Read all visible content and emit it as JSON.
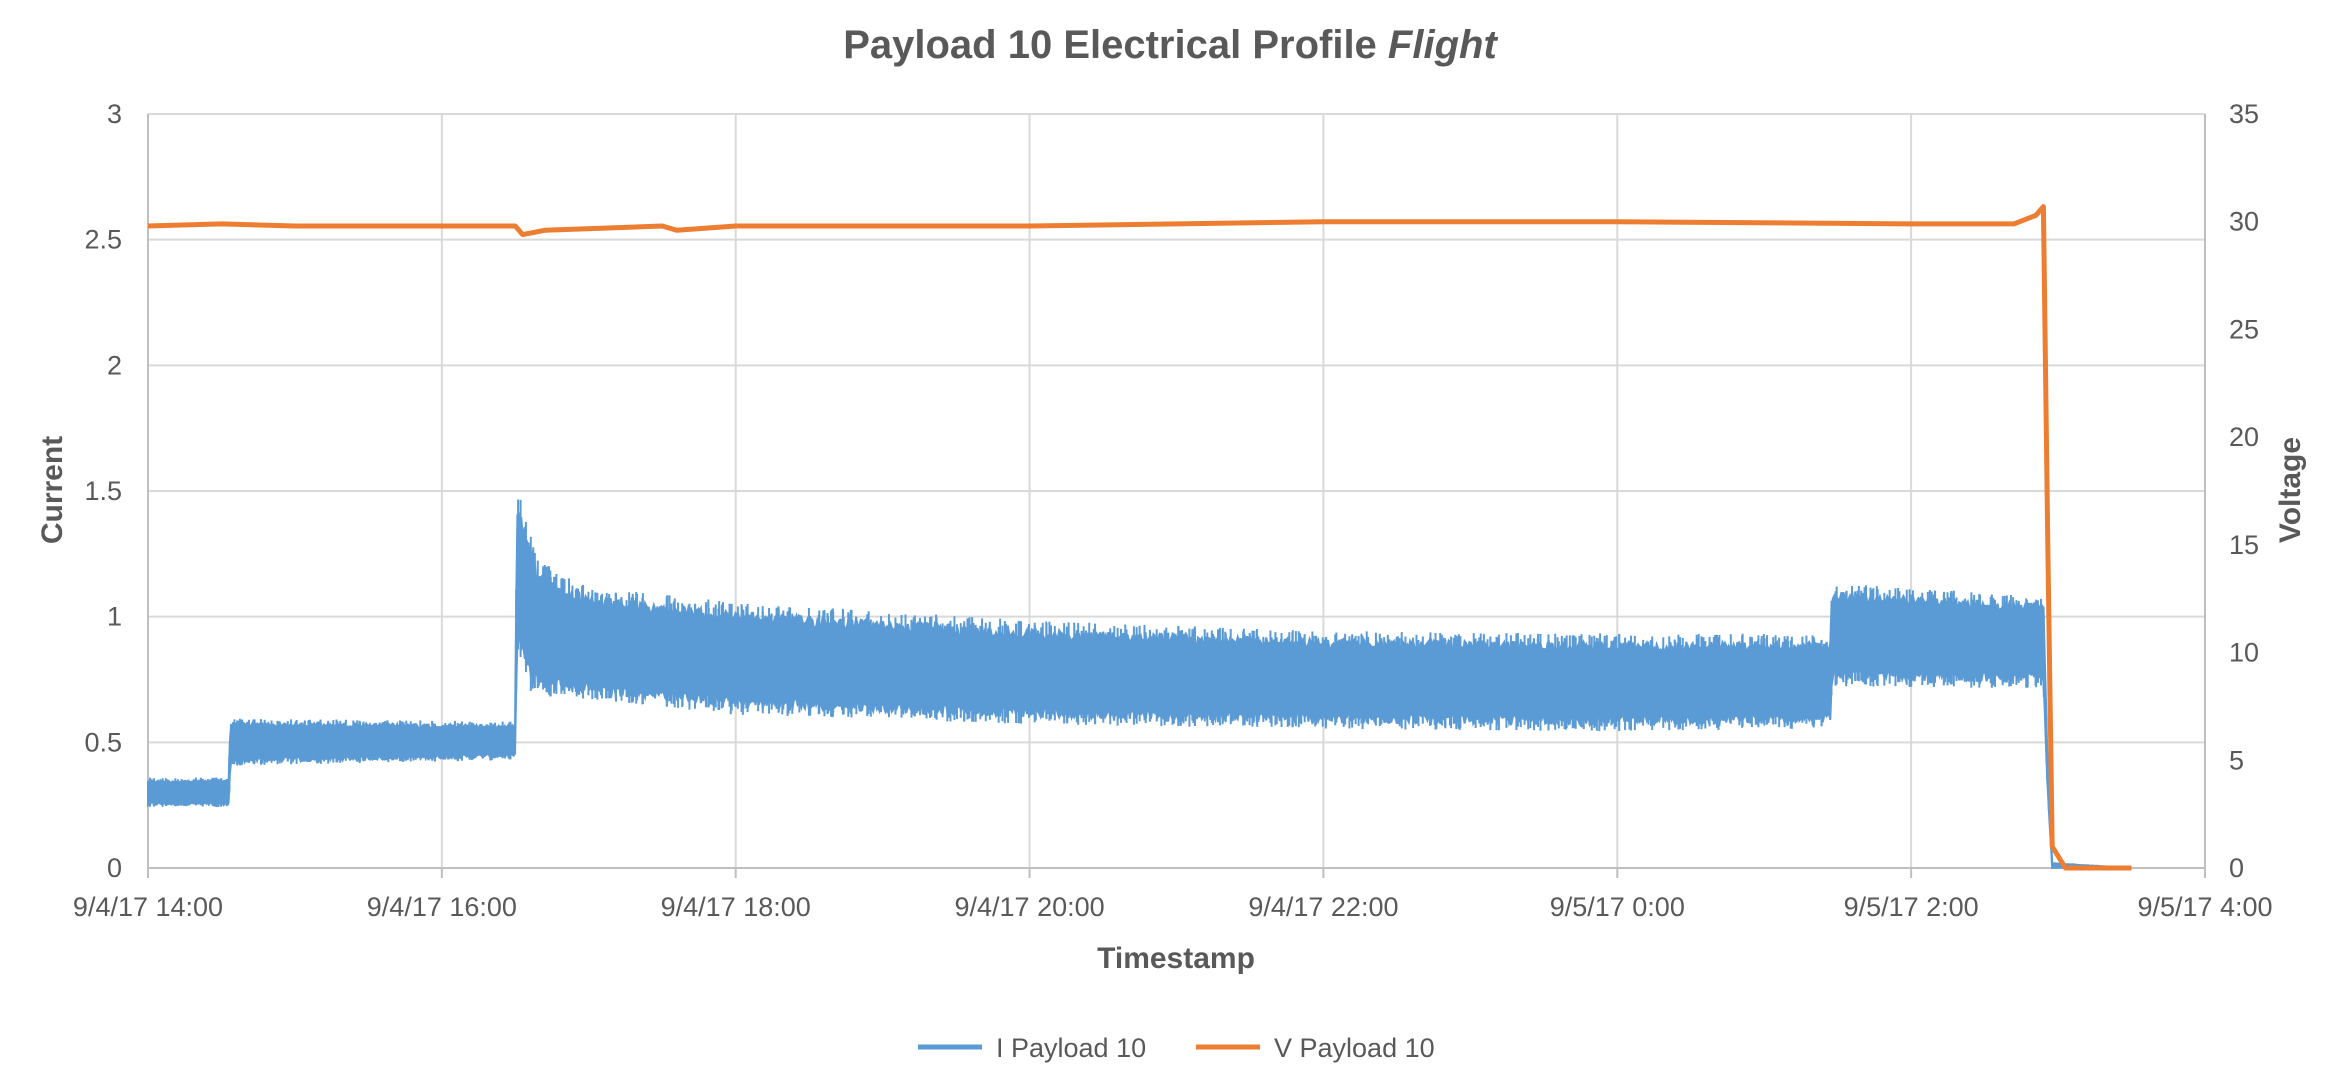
{
  "chart_data": {
    "type": "line",
    "title": "Payload 10 Electrical Profile",
    "title_italic": "Flight",
    "xlabel": "Timestamp",
    "ylabel": "Current",
    "y2label": "Voltage",
    "x_ticks": [
      "9/4/17 14:00",
      "9/4/17 16:00",
      "9/4/17 18:00",
      "9/4/17 20:00",
      "9/4/17 22:00",
      "9/5/17 0:00",
      "9/5/17 2:00",
      "9/5/17 4:00"
    ],
    "x_range_hours": [
      0,
      14
    ],
    "ylim": [
      0,
      3
    ],
    "y_ticks": [
      "0",
      "0.5",
      "1",
      "1.5",
      "2",
      "2.5",
      "3"
    ],
    "y2lim": [
      0,
      35
    ],
    "y2_ticks": [
      "0",
      "5",
      "10",
      "15",
      "20",
      "25",
      "30",
      "35"
    ],
    "grid": true,
    "legend_position": "bottom",
    "series": [
      {
        "name": "I Payload 10",
        "axis": "left",
        "color": "#5b9bd5",
        "band": [
          {
            "hours": 0.0,
            "low": 0.25,
            "high": 0.35
          },
          {
            "hours": 0.55,
            "low": 0.25,
            "high": 0.35
          },
          {
            "hours": 0.56,
            "low": 0.42,
            "high": 0.58
          },
          {
            "hours": 2.5,
            "low": 0.44,
            "high": 0.57
          },
          {
            "hours": 2.51,
            "low": 0.9,
            "high": 1.48
          },
          {
            "hours": 2.6,
            "low": 0.75,
            "high": 1.3
          },
          {
            "hours": 2.65,
            "low": 0.72,
            "high": 1.18
          },
          {
            "hours": 3.0,
            "low": 0.7,
            "high": 1.08
          },
          {
            "hours": 4.0,
            "low": 0.64,
            "high": 1.02
          },
          {
            "hours": 6.0,
            "low": 0.6,
            "high": 0.95
          },
          {
            "hours": 8.0,
            "low": 0.58,
            "high": 0.91
          },
          {
            "hours": 10.0,
            "low": 0.57,
            "high": 0.9
          },
          {
            "hours": 11.45,
            "low": 0.58,
            "high": 0.9
          },
          {
            "hours": 11.46,
            "low": 0.75,
            "high": 1.1
          },
          {
            "hours": 12.9,
            "low": 0.74,
            "high": 1.05
          },
          {
            "hours": 12.93,
            "low": 0.3,
            "high": 0.4
          },
          {
            "hours": 12.96,
            "low": 0.0,
            "high": 0.02
          },
          {
            "hours": 13.5,
            "low": 0.0,
            "high": 0.0
          }
        ]
      },
      {
        "name": "V Payload 10",
        "axis": "right",
        "color": "#ed7d31",
        "points": [
          {
            "hours": 0.0,
            "value": 29.8
          },
          {
            "hours": 0.5,
            "value": 29.9
          },
          {
            "hours": 1.0,
            "value": 29.8
          },
          {
            "hours": 2.0,
            "value": 29.8
          },
          {
            "hours": 2.5,
            "value": 29.8
          },
          {
            "hours": 2.55,
            "value": 29.4
          },
          {
            "hours": 2.7,
            "value": 29.6
          },
          {
            "hours": 3.5,
            "value": 29.8
          },
          {
            "hours": 3.6,
            "value": 29.6
          },
          {
            "hours": 4.0,
            "value": 29.8
          },
          {
            "hours": 6.0,
            "value": 29.8
          },
          {
            "hours": 8.0,
            "value": 30.0
          },
          {
            "hours": 10.0,
            "value": 30.0
          },
          {
            "hours": 12.0,
            "value": 29.9
          },
          {
            "hours": 12.7,
            "value": 29.9
          },
          {
            "hours": 12.85,
            "value": 30.3
          },
          {
            "hours": 12.9,
            "value": 30.7
          },
          {
            "hours": 12.93,
            "value": 15.0
          },
          {
            "hours": 12.96,
            "value": 1.0
          },
          {
            "hours": 13.05,
            "value": 0.0
          },
          {
            "hours": 13.5,
            "value": 0.0
          }
        ]
      }
    ]
  }
}
